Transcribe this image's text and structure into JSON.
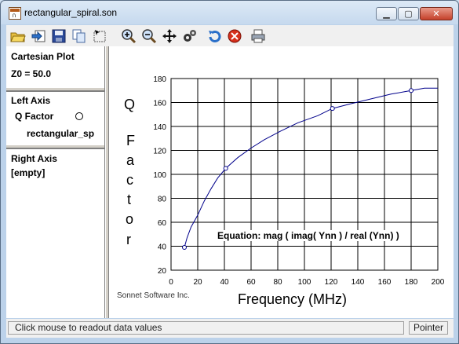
{
  "window": {
    "title": "rectangular_spiral.son",
    "controls": {
      "minimize": "▁",
      "maximize": "▢",
      "close": "✕"
    }
  },
  "toolbar": {
    "buttons": [
      {
        "name": "open-file-button",
        "icon": "folder-icon"
      },
      {
        "name": "import-button",
        "icon": "import-arrow-icon"
      },
      {
        "name": "save-button",
        "icon": "floppy-icon"
      },
      {
        "name": "copy-button",
        "icon": "copy-icon"
      },
      {
        "name": "select-area-button",
        "icon": "select-icon"
      },
      {
        "name": "zoom-in-button",
        "icon": "zoom-in-icon"
      },
      {
        "name": "zoom-out-button",
        "icon": "zoom-out-icon"
      },
      {
        "name": "pan-button",
        "icon": "pan-arrows-icon"
      },
      {
        "name": "settings-button",
        "icon": "gear-icon"
      },
      {
        "name": "refresh-button",
        "icon": "refresh-icon"
      },
      {
        "name": "stop-button",
        "icon": "stop-icon"
      },
      {
        "name": "print-button",
        "icon": "printer-icon"
      }
    ]
  },
  "left_panel": {
    "plot_type": "Cartesian Plot",
    "z0": "Z0 = 50.0",
    "left_axis_header": "Left Axis",
    "left_axis_item": "Q Factor",
    "left_axis_file": "rectangular_sp",
    "right_axis_header": "Right Axis",
    "right_axis_value": "[empty]"
  },
  "plot": {
    "y_title_letters": [
      "Q",
      "F",
      "a",
      "c",
      "t",
      "o",
      "r"
    ],
    "x_title": "Frequency (MHz)",
    "equation": "Equation: mag ( imag( Ynn ) / real (Ynn) )",
    "credit": "Sonnet Software Inc.",
    "line_color": "#00008b"
  },
  "chart_data": {
    "type": "line",
    "xlabel": "Frequency (MHz)",
    "ylabel": "Q Factor",
    "xlim": [
      0,
      200
    ],
    "ylim": [
      20,
      180
    ],
    "x_ticks": [
      0,
      20,
      40,
      60,
      80,
      100,
      120,
      140,
      160,
      180,
      200
    ],
    "y_ticks": [
      20,
      40,
      60,
      80,
      100,
      120,
      140,
      160,
      180
    ],
    "grid": true,
    "series": [
      {
        "name": "rectangular_sp",
        "x": [
          10,
          12,
          15,
          20,
          25,
          30,
          35,
          41,
          50,
          60,
          70,
          82,
          95,
          110,
          121,
          135,
          150,
          165,
          180,
          190,
          200
        ],
        "y": [
          39,
          47,
          56,
          66,
          78,
          88,
          97,
          105,
          114,
          122,
          129,
          136,
          143,
          149,
          155,
          159,
          163,
          167,
          170,
          172,
          172
        ],
        "markers_x": [
          10,
          41,
          121,
          180
        ]
      }
    ]
  },
  "status": {
    "message": "Click mouse to readout data values",
    "mode": "Pointer"
  }
}
